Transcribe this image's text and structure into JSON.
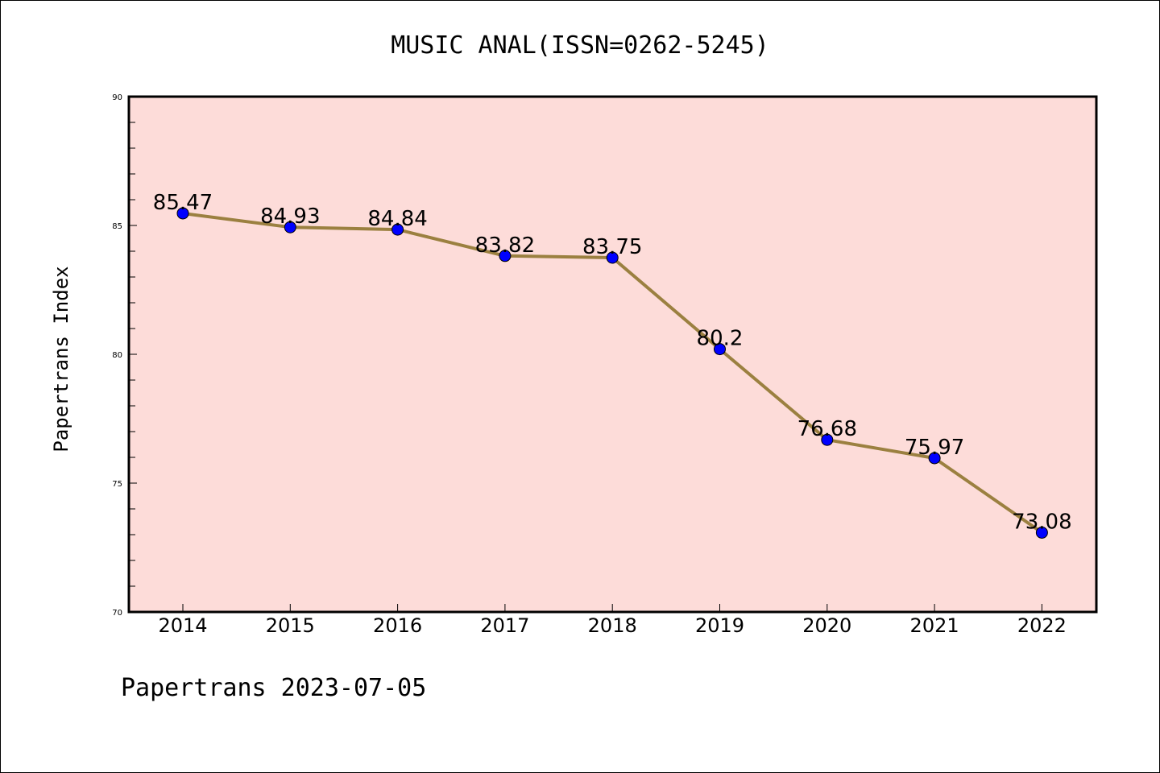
{
  "chart_data": {
    "type": "line",
    "title": "MUSIC ANAL(ISSN=0262-5245)",
    "xlabel": "",
    "ylabel": "Papertrans Index",
    "categories": [
      "2014",
      "2015",
      "2016",
      "2017",
      "2018",
      "2019",
      "2020",
      "2021",
      "2022"
    ],
    "series": [
      {
        "values": [
          85.47,
          84.93,
          84.84,
          83.82,
          83.75,
          80.2,
          76.68,
          75.97,
          73.08
        ],
        "labels": [
          "85.47",
          "84.93",
          "84.84",
          "83.82",
          "83.75",
          "80.2",
          "76.68",
          "75.97",
          "73.08"
        ]
      }
    ],
    "ylim": [
      70,
      90
    ],
    "yticks": [
      "70",
      "75",
      "80",
      "85",
      "90"
    ],
    "grid": false,
    "legend": "none",
    "colors": {
      "plot_background": "#fddcd9",
      "line": "#9b8040",
      "marker": "#0000ff"
    }
  },
  "footer": "Papertrans 2023-07-05"
}
